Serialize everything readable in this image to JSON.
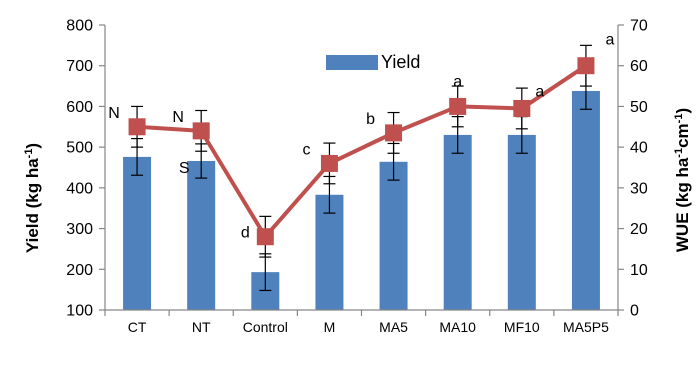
{
  "chart_data": {
    "type": "bar",
    "title": "",
    "categories": [
      "CT",
      "NT",
      "Control",
      "M",
      "MA5",
      "MA10",
      "MF10",
      "MA5P5"
    ],
    "series": [
      {
        "name": "Yield",
        "type": "bar",
        "axis": "left",
        "values": [
          476,
          466,
          193,
          383,
          464,
          530,
          530,
          638
        ],
        "error": [
          45,
          42,
          45,
          45,
          45,
          45,
          45,
          45
        ]
      },
      {
        "type": "line",
        "axis": "right",
        "values": [
          45,
          44,
          18,
          36,
          43.5,
          50,
          49.5,
          60
        ],
        "error": [
          5,
          5,
          5,
          5,
          5,
          5,
          5,
          5
        ],
        "labels": [
          "N",
          "N",
          "d",
          "c",
          "b",
          "a",
          "a",
          "a"
        ]
      }
    ],
    "bar_labels": [
      "",
      "S",
      "",
      "",
      "",
      "",
      "",
      ""
    ],
    "ylabel": "Yield (kg ha-1)",
    "y2label": "WUE (kg ha-1cm-1)",
    "ylim": [
      100,
      800
    ],
    "y2lim": [
      0,
      70
    ],
    "yticks": [
      "100",
      "200",
      "300",
      "400",
      "500",
      "600",
      "700",
      "800"
    ],
    "y2ticks": [
      "0",
      "10",
      "20",
      "30",
      "40",
      "50",
      "60",
      "70"
    ],
    "legend": {
      "position": "top-center",
      "entries": [
        "Yield"
      ]
    },
    "colors": {
      "bar": "#4F81BD",
      "line": "#C0504D"
    },
    "grid": false
  },
  "axis_titles": {
    "left_main": "Yield (kg ha",
    "left_sup": "-1",
    "left_close": ")",
    "right_main": "WUE (kg ha",
    "right_sup1": "-1",
    "right_mid": "cm",
    "right_sup2": "-1",
    "right_close": ")"
  }
}
